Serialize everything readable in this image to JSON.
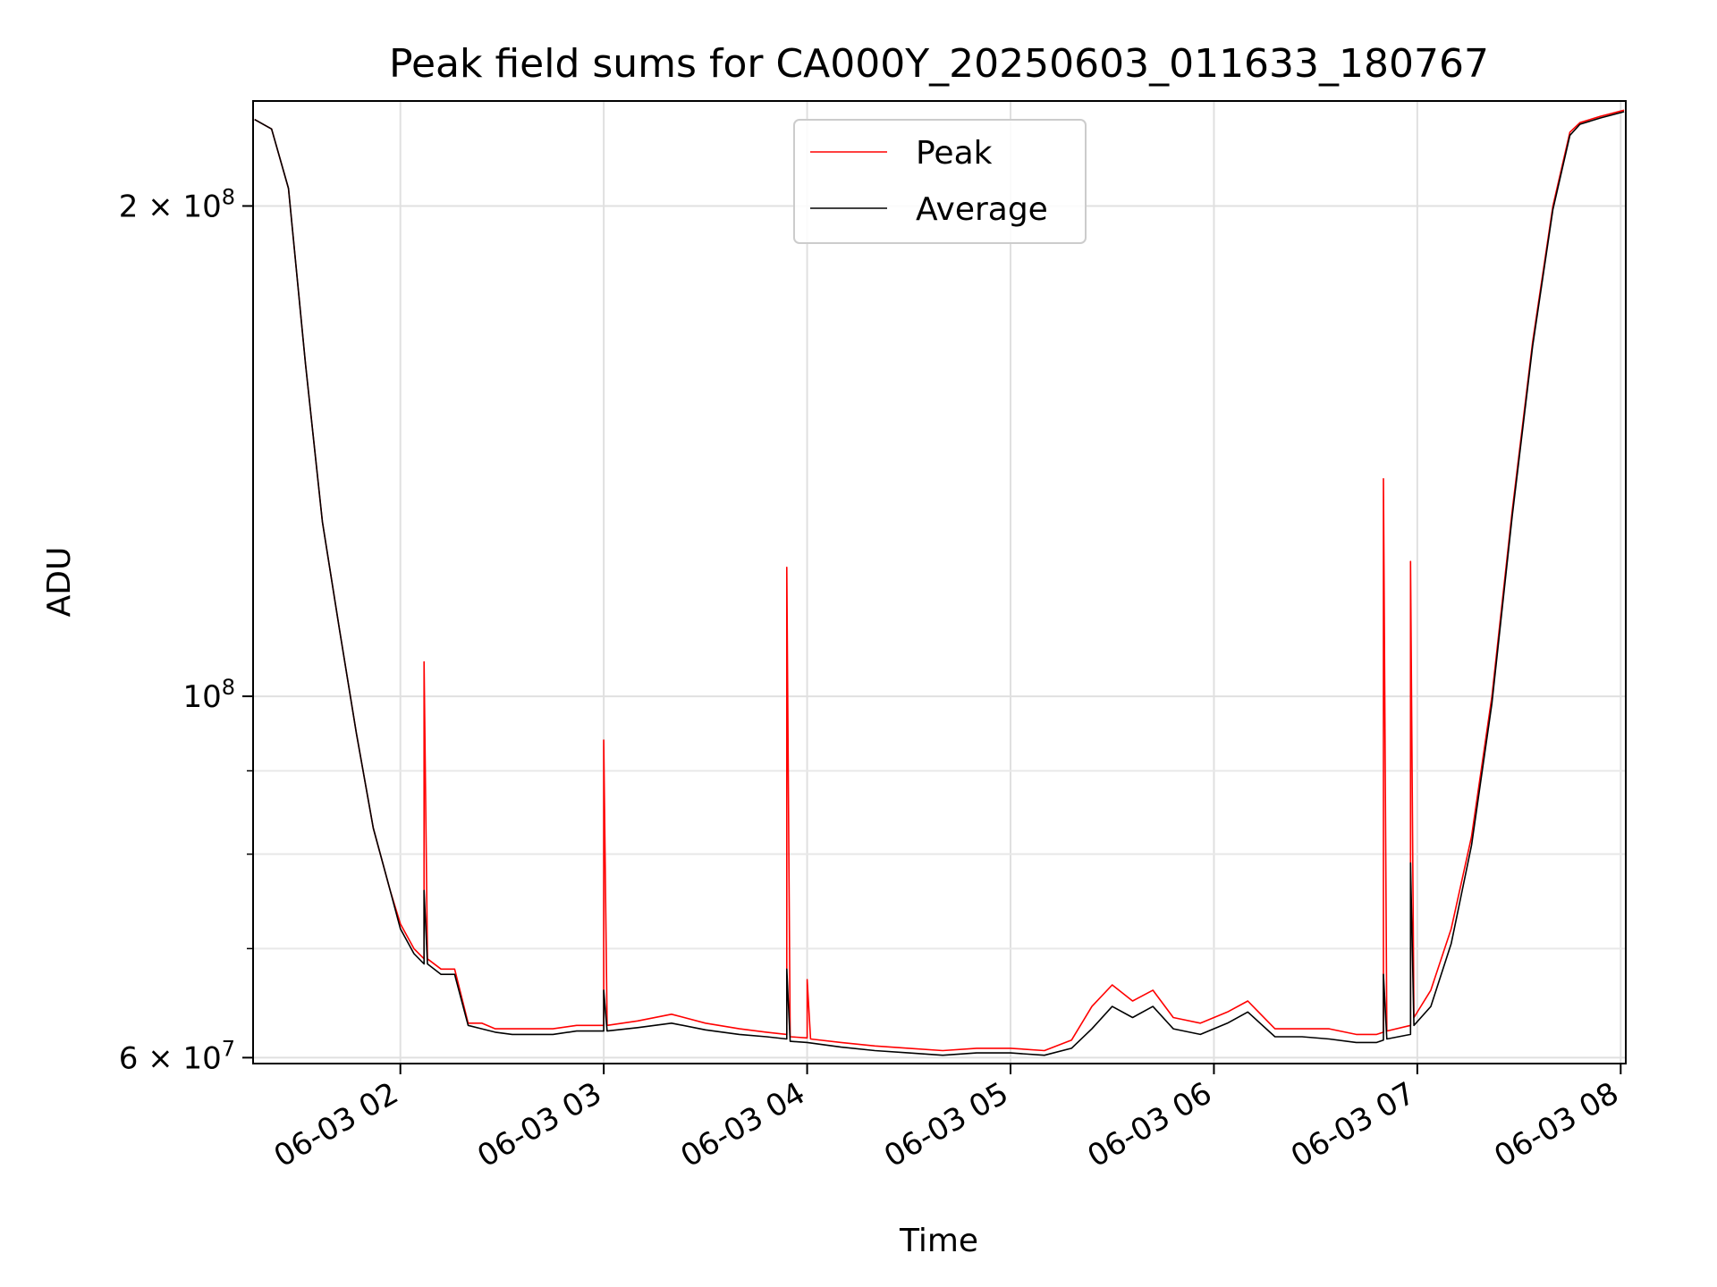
{
  "chart_data": {
    "type": "line",
    "title": "Peak field sums for CA000Y_20250603_011633_180767",
    "xlabel": "Time",
    "ylabel": "ADU",
    "yscale": "log",
    "ylim": [
      59500000,
      232000000
    ],
    "xlim": [
      "2025-06-03 01:16:33",
      "2025-06-03 08:01:30"
    ],
    "x_ticks": [
      "06-03 02",
      "06-03 03",
      "06-03 04",
      "06-03 05",
      "06-03 06",
      "06-03 07",
      "06-03 08"
    ],
    "y_ticks": [
      {
        "value": 200000000,
        "label_base": "2 × 10",
        "label_exp": "8"
      },
      {
        "value": 100000000,
        "label_base": "10",
        "label_exp": "8"
      },
      {
        "value": 60000000,
        "label_base": "6 × 10",
        "label_exp": "7"
      }
    ],
    "y_minor_ticks": [
      70000000,
      80000000,
      90000000
    ],
    "grid": true,
    "legend_position": "top-center",
    "series": [
      {
        "name": "Peak",
        "color": "#ff0000",
        "x": [
          "2025-06-03 01:17",
          "2025-06-03 01:22",
          "2025-06-03 01:27",
          "2025-06-03 01:32",
          "2025-06-03 01:37",
          "2025-06-03 01:42",
          "2025-06-03 01:47",
          "2025-06-03 01:52",
          "2025-06-03 01:57",
          "2025-06-03 02:00",
          "2025-06-03 02:04",
          "2025-06-03 02:07",
          "2025-06-03 02:07",
          "2025-06-03 02:08",
          "2025-06-03 02:12",
          "2025-06-03 02:16",
          "2025-06-03 02:20",
          "2025-06-03 02:24",
          "2025-06-03 02:28",
          "2025-06-03 02:33",
          "2025-06-03 02:38",
          "2025-06-03 02:45",
          "2025-06-03 02:52",
          "2025-06-03 03:00",
          "2025-06-03 03:00",
          "2025-06-03 03:01",
          "2025-06-03 03:10",
          "2025-06-03 03:20",
          "2025-06-03 03:30",
          "2025-06-03 03:40",
          "2025-06-03 03:48",
          "2025-06-03 03:54",
          "2025-06-03 03:54",
          "2025-06-03 03:55",
          "2025-06-03 04:00",
          "2025-06-03 04:00",
          "2025-06-03 04:01",
          "2025-06-03 04:10",
          "2025-06-03 04:20",
          "2025-06-03 04:30",
          "2025-06-03 04:40",
          "2025-06-03 04:50",
          "2025-06-03 05:00",
          "2025-06-03 05:10",
          "2025-06-03 05:18",
          "2025-06-03 05:24",
          "2025-06-03 05:30",
          "2025-06-03 05:36",
          "2025-06-03 05:42",
          "2025-06-03 05:48",
          "2025-06-03 05:56",
          "2025-06-03 06:04",
          "2025-06-03 06:10",
          "2025-06-03 06:18",
          "2025-06-03 06:26",
          "2025-06-03 06:34",
          "2025-06-03 06:42",
          "2025-06-03 06:48",
          "2025-06-03 06:50",
          "2025-06-03 06:50",
          "2025-06-03 06:51",
          "2025-06-03 06:58",
          "2025-06-03 06:58",
          "2025-06-03 06:59",
          "2025-06-03 07:04",
          "2025-06-03 07:10",
          "2025-06-03 07:16",
          "2025-06-03 07:22",
          "2025-06-03 07:28",
          "2025-06-03 07:34",
          "2025-06-03 07:40",
          "2025-06-03 07:45",
          "2025-06-03 07:48",
          "2025-06-03 07:54",
          "2025-06-03 08:01"
        ],
        "y": [
          226000000,
          223000000,
          205000000,
          160000000,
          128000000,
          110000000,
          95000000,
          83000000,
          76000000,
          72500000,
          70000000,
          69000000,
          105000000,
          69000000,
          68000000,
          68000000,
          63000000,
          63000000,
          62500000,
          62500000,
          62500000,
          62500000,
          62800000,
          62800000,
          94000000,
          62800000,
          63200000,
          63800000,
          63000000,
          62500000,
          62200000,
          62000000,
          120000000,
          61800000,
          61700000,
          67000000,
          61600000,
          61300000,
          61000000,
          60800000,
          60600000,
          60800000,
          60800000,
          60600000,
          61500000,
          64500000,
          66500000,
          65000000,
          66000000,
          63500000,
          63000000,
          64000000,
          65000000,
          62500000,
          62500000,
          62500000,
          62000000,
          62000000,
          62200000,
          136000000,
          62300000,
          62800000,
          121000000,
          63500000,
          66000000,
          72000000,
          82000000,
          100000000,
          130000000,
          165000000,
          200000000,
          222000000,
          225000000,
          227000000,
          229000000
        ]
      },
      {
        "name": "Average",
        "color": "#000000",
        "x": [
          "2025-06-03 01:17",
          "2025-06-03 01:22",
          "2025-06-03 01:27",
          "2025-06-03 01:32",
          "2025-06-03 01:37",
          "2025-06-03 01:42",
          "2025-06-03 01:47",
          "2025-06-03 01:52",
          "2025-06-03 01:57",
          "2025-06-03 02:00",
          "2025-06-03 02:04",
          "2025-06-03 02:07",
          "2025-06-03 02:07",
          "2025-06-03 02:08",
          "2025-06-03 02:12",
          "2025-06-03 02:16",
          "2025-06-03 02:20",
          "2025-06-03 02:24",
          "2025-06-03 02:28",
          "2025-06-03 02:33",
          "2025-06-03 02:38",
          "2025-06-03 02:45",
          "2025-06-03 02:52",
          "2025-06-03 03:00",
          "2025-06-03 03:00",
          "2025-06-03 03:01",
          "2025-06-03 03:10",
          "2025-06-03 03:20",
          "2025-06-03 03:30",
          "2025-06-03 03:40",
          "2025-06-03 03:48",
          "2025-06-03 03:54",
          "2025-06-03 03:54",
          "2025-06-03 03:55",
          "2025-06-03 04:00",
          "2025-06-03 04:10",
          "2025-06-03 04:20",
          "2025-06-03 04:30",
          "2025-06-03 04:40",
          "2025-06-03 04:50",
          "2025-06-03 05:00",
          "2025-06-03 05:10",
          "2025-06-03 05:18",
          "2025-06-03 05:24",
          "2025-06-03 05:30",
          "2025-06-03 05:36",
          "2025-06-03 05:42",
          "2025-06-03 05:48",
          "2025-06-03 05:56",
          "2025-06-03 06:04",
          "2025-06-03 06:10",
          "2025-06-03 06:18",
          "2025-06-03 06:26",
          "2025-06-03 06:34",
          "2025-06-03 06:42",
          "2025-06-03 06:48",
          "2025-06-03 06:50",
          "2025-06-03 06:50",
          "2025-06-03 06:51",
          "2025-06-03 06:58",
          "2025-06-03 06:58",
          "2025-06-03 06:59",
          "2025-06-03 07:04",
          "2025-06-03 07:10",
          "2025-06-03 07:16",
          "2025-06-03 07:22",
          "2025-06-03 07:28",
          "2025-06-03 07:34",
          "2025-06-03 07:40",
          "2025-06-03 07:45",
          "2025-06-03 07:48",
          "2025-06-03 07:54",
          "2025-06-03 08:01"
        ],
        "y": [
          226000000,
          223000000,
          205000000,
          160000000,
          128000000,
          110000000,
          95000000,
          83000000,
          76000000,
          72000000,
          69500000,
          68500000,
          76000000,
          68500000,
          67500000,
          67500000,
          62800000,
          62500000,
          62200000,
          62000000,
          62000000,
          62000000,
          62300000,
          62300000,
          66000000,
          62300000,
          62600000,
          63000000,
          62400000,
          62000000,
          61800000,
          61600000,
          68000000,
          61400000,
          61300000,
          60900000,
          60600000,
          60400000,
          60200000,
          60400000,
          60400000,
          60200000,
          60800000,
          62500000,
          64500000,
          63500000,
          64500000,
          62500000,
          62000000,
          63000000,
          64000000,
          61800000,
          61800000,
          61600000,
          61300000,
          61300000,
          61500000,
          67500000,
          61600000,
          62000000,
          79000000,
          62800000,
          64500000,
          70500000,
          81000000,
          99000000,
          129000000,
          164000000,
          199000000,
          221000000,
          224500000,
          226500000,
          228500000
        ]
      }
    ]
  }
}
